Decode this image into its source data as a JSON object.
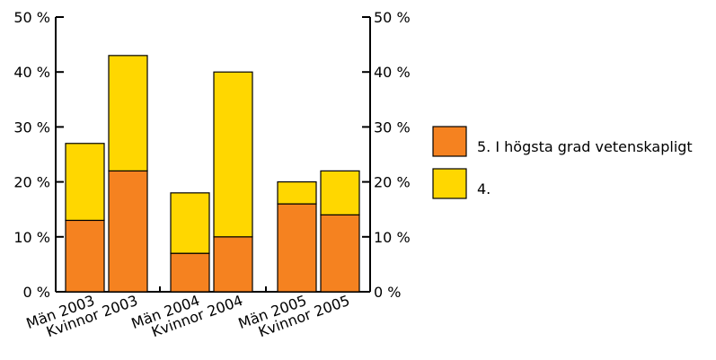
{
  "chart_data": {
    "type": "bar",
    "stacked": true,
    "title": "",
    "xlabel": "",
    "ylabel": "",
    "ylim": [
      0,
      50
    ],
    "y_ticks": [
      "0 %",
      "10 %",
      "20 %",
      "30 %",
      "40 %",
      "50 %"
    ],
    "y_tick_values": [
      0,
      10,
      20,
      30,
      40,
      50
    ],
    "categories": [
      "Män 2003",
      "Kvinnor 2003",
      "Män 2004",
      "Kvinnor 2004",
      "Män 2005",
      "Kvinnor 2005"
    ],
    "series": [
      {
        "name": "5. I högsta grad vetenskapligt",
        "values": [
          13,
          22,
          7,
          10,
          16,
          14
        ],
        "color": "#f58220"
      },
      {
        "name": "4.",
        "values": [
          14,
          21,
          11,
          30,
          4,
          8
        ],
        "color": "#ffd700"
      }
    ],
    "legend_position": "right",
    "grid": false
  }
}
